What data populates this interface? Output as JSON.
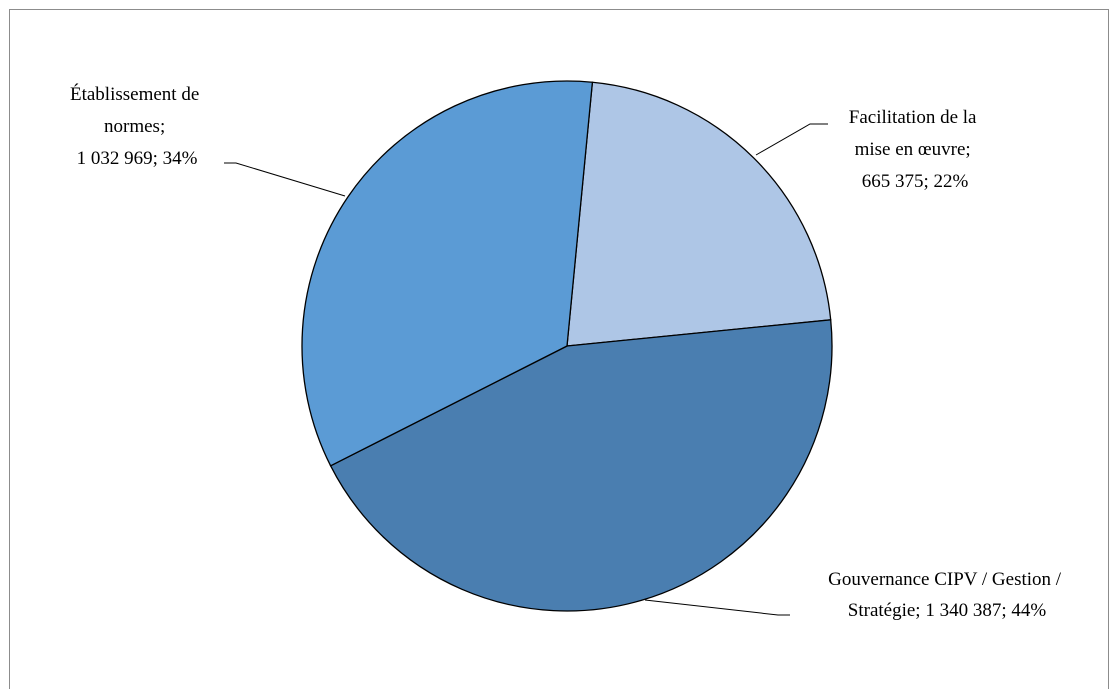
{
  "chart_data": {
    "type": "pie",
    "title": "",
    "slices": [
      {
        "name": "Facilitation de la mise en œuvre",
        "value": 665375,
        "percent": 22,
        "color": "#aec6e6",
        "label_lines": [
          "Facilitation de la",
          "mise en œuvre;",
          "665 375; 22%"
        ]
      },
      {
        "name": "Gouvernance CIPV / Gestion / Stratégie",
        "value": 1340387,
        "percent": 44,
        "color": "#4a7eb0",
        "label_lines": [
          "Gouvernance CIPV / Gestion /",
          "Stratégie; 1 340 387; 44%"
        ]
      },
      {
        "name": "Établissement de normes",
        "value": 1032969,
        "percent": 34,
        "color": "#5b9bd5",
        "label_lines": [
          "Établissement de",
          "normes;",
          "1 032 969; 34%"
        ]
      }
    ],
    "legend": "none",
    "data_labels": "outside with leader lines"
  }
}
